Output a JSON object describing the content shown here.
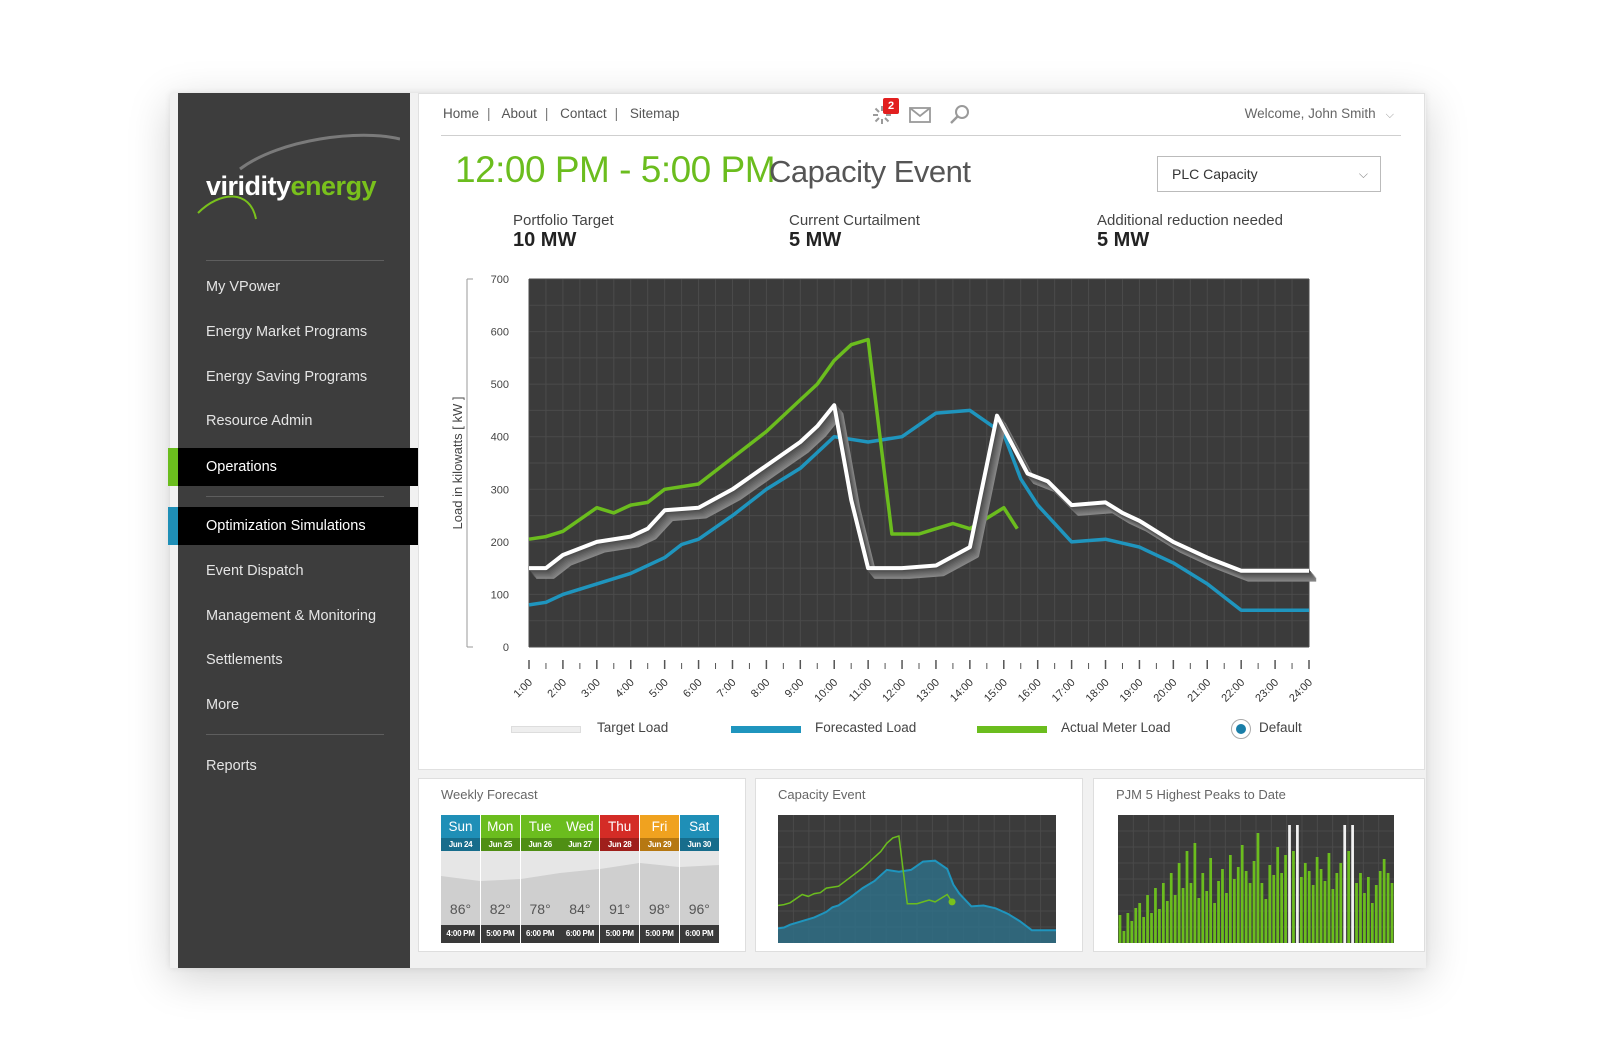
{
  "brand": {
    "logo_part1": "viridity",
    "logo_part2": "energy",
    "accent_green": "#79c11c",
    "accent_blue": "#1f8fb7"
  },
  "sidebar": {
    "items": [
      {
        "label": "My VPower"
      },
      {
        "label": "Energy Market Programs"
      },
      {
        "label": "Energy Saving Programs"
      },
      {
        "label": "Resource Admin"
      },
      {
        "label": "Operations",
        "active": true,
        "accent": "#6bbd1e"
      },
      {
        "label": "Optimization Simulations",
        "active": true,
        "accent": "#1f8fb7"
      },
      {
        "label": "Event Dispatch"
      },
      {
        "label": "Management & Monitoring"
      },
      {
        "label": "Settlements"
      },
      {
        "label": "More"
      },
      {
        "label": "Reports"
      }
    ]
  },
  "topnav": {
    "links": [
      "Home",
      "About",
      "Contact",
      "Sitemap"
    ],
    "alerts_count": "2",
    "icons": [
      "alert-icon",
      "mail-icon",
      "search-icon"
    ],
    "welcome": "Welcome, John Smith"
  },
  "event": {
    "time": "12:00 PM - 5:00 PM",
    "title": "Capacity Event",
    "select_value": "PLC Capacity"
  },
  "stats": [
    {
      "label": "Portfolio Target",
      "value": "10 MW"
    },
    {
      "label": "Current Curtailment",
      "value": "5 MW"
    },
    {
      "label": "Additional reduction needed",
      "value": "5 MW"
    }
  ],
  "chart_data": {
    "type": "line",
    "ylabel": "Load in kilowatts [ kW ]",
    "ylim": [
      0,
      700
    ],
    "yticks": [
      0,
      100,
      200,
      300,
      400,
      500,
      600,
      700
    ],
    "x": [
      "1:00",
      "2:00",
      "3:00",
      "4:00",
      "5:00",
      "6:00",
      "7:00",
      "8:00",
      "9:00",
      "10:00",
      "11:00",
      "12:00",
      "13:00",
      "14:00",
      "15:00",
      "16:00",
      "17:00",
      "18:00",
      "19:00",
      "20:00",
      "21:00",
      "22:00",
      "23:00",
      "24:00"
    ],
    "grid": true,
    "series": [
      {
        "name": "Target Load",
        "color": "#ffffff",
        "values": [
          [
            1,
            150
          ],
          [
            1.5,
            150
          ],
          [
            2,
            175
          ],
          [
            3,
            200
          ],
          [
            4,
            210
          ],
          [
            4.5,
            225
          ],
          [
            5,
            260
          ],
          [
            6,
            265
          ],
          [
            7,
            300
          ],
          [
            8,
            345
          ],
          [
            9,
            390
          ],
          [
            9.5,
            420
          ],
          [
            10,
            460
          ],
          [
            10.5,
            280
          ],
          [
            11,
            150
          ],
          [
            12,
            150
          ],
          [
            13,
            155
          ],
          [
            14,
            190
          ],
          [
            14.8,
            440
          ],
          [
            15.7,
            330
          ],
          [
            16.3,
            315
          ],
          [
            17,
            270
          ],
          [
            18,
            275
          ],
          [
            18.5,
            255
          ],
          [
            19,
            240
          ],
          [
            20,
            200
          ],
          [
            21,
            170
          ],
          [
            22,
            145
          ],
          [
            23,
            145
          ],
          [
            24,
            145
          ]
        ]
      },
      {
        "name": "Forecasted Load",
        "color": "#1f95be",
        "values": [
          [
            1,
            80
          ],
          [
            1.5,
            85
          ],
          [
            2,
            100
          ],
          [
            3,
            120
          ],
          [
            4,
            140
          ],
          [
            5,
            170
          ],
          [
            5.5,
            195
          ],
          [
            6,
            205
          ],
          [
            7,
            250
          ],
          [
            8,
            300
          ],
          [
            9,
            340
          ],
          [
            9.5,
            370
          ],
          [
            10,
            400
          ],
          [
            11,
            390
          ],
          [
            12,
            400
          ],
          [
            13,
            445
          ],
          [
            14,
            450
          ],
          [
            15,
            405
          ],
          [
            15.5,
            320
          ],
          [
            16,
            270
          ],
          [
            17,
            200
          ],
          [
            18,
            205
          ],
          [
            19,
            190
          ],
          [
            20,
            160
          ],
          [
            21,
            120
          ],
          [
            22,
            70
          ],
          [
            23,
            70
          ],
          [
            24,
            70
          ]
        ]
      },
      {
        "name": "Actual Meter Load",
        "color": "#6bbd1e",
        "values": [
          [
            1,
            205
          ],
          [
            1.5,
            210
          ],
          [
            2,
            220
          ],
          [
            3,
            265
          ],
          [
            3.5,
            255
          ],
          [
            4,
            270
          ],
          [
            4.5,
            275
          ],
          [
            5,
            300
          ],
          [
            6,
            310
          ],
          [
            7,
            360
          ],
          [
            8,
            410
          ],
          [
            9,
            470
          ],
          [
            9.5,
            500
          ],
          [
            10,
            545
          ],
          [
            10.5,
            575
          ],
          [
            11,
            585
          ],
          [
            11.7,
            215
          ],
          [
            12,
            215
          ],
          [
            12.5,
            215
          ],
          [
            13,
            225
          ],
          [
            13.5,
            235
          ],
          [
            14,
            225
          ],
          [
            15,
            265
          ],
          [
            15.4,
            225
          ]
        ]
      }
    ]
  },
  "chart_ui": {
    "default_label": "Default"
  },
  "weekly": {
    "title": "Weekly Forecast",
    "days": [
      {
        "name": "Sun",
        "date": "Jun 24",
        "temp": "86°",
        "time": "4:00 PM",
        "color": "#1f8fb7",
        "dark": "#176d8c"
      },
      {
        "name": "Mon",
        "date": "Jun 25",
        "temp": "82°",
        "time": "5:00 PM",
        "color": "#6bbd1e",
        "dark": "#4f8f14"
      },
      {
        "name": "Tue",
        "date": "Jun 26",
        "temp": "78°",
        "time": "6:00 PM",
        "color": "#6bbd1e",
        "dark": "#4f8f14"
      },
      {
        "name": "Wed",
        "date": "Jun 27",
        "temp": "84°",
        "time": "6:00 PM",
        "color": "#6bbd1e",
        "dark": "#4f8f14"
      },
      {
        "name": "Thu",
        "date": "Jun 28",
        "temp": "91°",
        "time": "5:00 PM",
        "color": "#d42c26",
        "dark": "#9f1f1b"
      },
      {
        "name": "Fri",
        "date": "Jun 29",
        "temp": "98°",
        "time": "5:00 PM",
        "color": "#f0a21f",
        "dark": "#b67812"
      },
      {
        "name": "Sat",
        "date": "Jun 30",
        "temp": "96°",
        "time": "6:00 PM",
        "color": "#1f8fb7",
        "dark": "#176d8c"
      }
    ]
  },
  "capacity_panel": {
    "title": "Capacity Event"
  },
  "peaks_panel": {
    "title": "PJM 5 Highest Peaks to Date"
  }
}
